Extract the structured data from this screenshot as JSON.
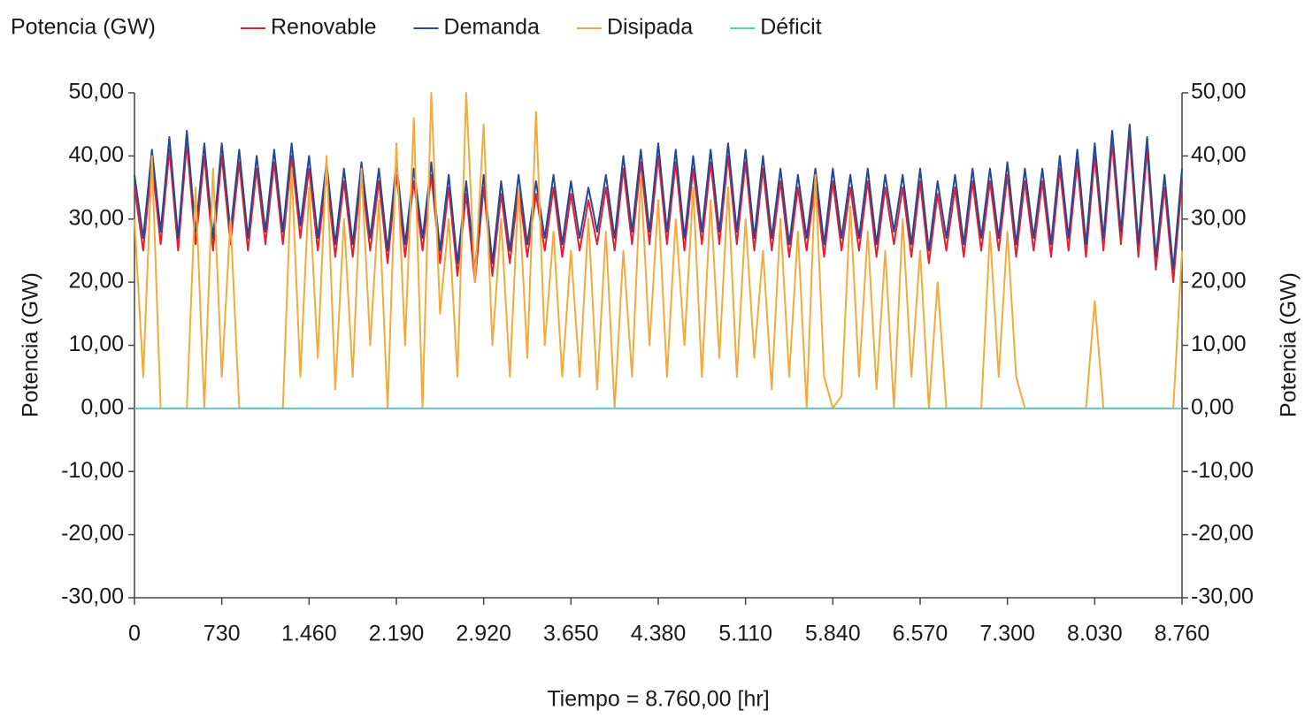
{
  "chart_data": {
    "type": "line",
    "legend_title": "Potencia (GW)",
    "y_label": "Potencia (GW)",
    "y2_label": "Potencia (GW)",
    "x_label": "Tiempo = 8.760,00 [hr]",
    "legend_position": "top-left",
    "grid": false,
    "x": [
      0,
      73,
      146,
      219,
      292,
      365,
      438,
      511,
      584,
      657,
      730,
      803,
      876,
      949,
      1022,
      1095,
      1168,
      1241,
      1314,
      1387,
      1460,
      1533,
      1606,
      1679,
      1752,
      1825,
      1898,
      1971,
      2044,
      2117,
      2190,
      2263,
      2336,
      2409,
      2482,
      2555,
      2628,
      2701,
      2774,
      2847,
      2920,
      2993,
      3066,
      3139,
      3212,
      3285,
      3358,
      3431,
      3504,
      3577,
      3650,
      3723,
      3796,
      3869,
      3942,
      4015,
      4088,
      4161,
      4234,
      4307,
      4380,
      4453,
      4526,
      4599,
      4672,
      4745,
      4818,
      4891,
      4964,
      5037,
      5110,
      5183,
      5256,
      5329,
      5402,
      5475,
      5548,
      5621,
      5694,
      5767,
      5840,
      5913,
      5986,
      6059,
      6132,
      6205,
      6278,
      6351,
      6424,
      6497,
      6570,
      6643,
      6716,
      6789,
      6862,
      6935,
      7008,
      7081,
      7154,
      7227,
      7300,
      7373,
      7446,
      7519,
      7592,
      7665,
      7738,
      7811,
      7884,
      7957,
      8030,
      8103,
      8176,
      8249,
      8322,
      8395,
      8468,
      8541,
      8614,
      8687,
      8760
    ],
    "series": [
      {
        "name": "Renovable",
        "color": "#e5202e",
        "values": [
          35,
          25,
          39,
          26,
          41,
          25,
          42,
          26,
          40,
          25,
          40,
          26,
          39,
          25,
          38,
          26,
          39,
          26,
          40,
          27,
          38,
          25,
          37,
          24,
          36,
          24,
          37,
          25,
          36,
          23,
          37,
          24,
          36,
          25,
          37,
          23,
          35,
          21,
          34,
          20,
          35,
          21,
          34,
          23,
          35,
          24,
          34,
          25,
          35,
          24,
          34,
          25,
          33,
          26,
          35,
          25,
          38,
          26,
          39,
          26,
          40,
          26,
          39,
          25,
          38,
          26,
          39,
          26,
          40,
          26,
          39,
          25,
          38,
          25,
          36,
          24,
          35,
          25,
          36,
          24,
          36,
          25,
          35,
          25,
          36,
          24,
          35,
          26,
          35,
          24,
          36,
          23,
          34,
          25,
          35,
          24,
          36,
          25,
          36,
          25,
          37,
          24,
          36,
          25,
          36,
          24,
          38,
          25,
          39,
          24,
          40,
          25,
          42,
          26,
          43,
          24,
          41,
          22,
          35,
          20,
          36
        ]
      },
      {
        "name": "Demanda",
        "color": "#22479b",
        "values": [
          37,
          27,
          41,
          28,
          43,
          27,
          44,
          28,
          42,
          27,
          42,
          28,
          41,
          27,
          40,
          28,
          41,
          28,
          42,
          29,
          40,
          27,
          39,
          26,
          38,
          26,
          39,
          27,
          38,
          25,
          39,
          26,
          38,
          27,
          39,
          25,
          37,
          23,
          36,
          22,
          37,
          23,
          36,
          25,
          37,
          26,
          36,
          27,
          37,
          26,
          36,
          27,
          35,
          28,
          37,
          27,
          40,
          28,
          41,
          28,
          42,
          28,
          41,
          27,
          40,
          28,
          41,
          28,
          42,
          28,
          41,
          27,
          40,
          27,
          38,
          26,
          37,
          27,
          38,
          26,
          38,
          27,
          37,
          27,
          38,
          26,
          37,
          28,
          37,
          26,
          38,
          25,
          36,
          27,
          37,
          26,
          38,
          27,
          38,
          27,
          39,
          26,
          38,
          27,
          38,
          26,
          40,
          27,
          41,
          26,
          42,
          27,
          44,
          28,
          45,
          26,
          43,
          24,
          37,
          22,
          38
        ]
      },
      {
        "name": "Disipada",
        "color": "#f4a93a",
        "values": [
          30,
          5,
          40,
          0,
          0,
          0,
          0,
          35,
          0,
          38,
          5,
          30,
          0,
          0,
          0,
          0,
          0,
          0,
          38,
          5,
          35,
          8,
          40,
          3,
          30,
          5,
          38,
          10,
          33,
          0,
          42,
          10,
          46,
          0,
          50,
          15,
          30,
          5,
          50,
          20,
          45,
          10,
          30,
          5,
          35,
          8,
          47,
          10,
          28,
          5,
          25,
          5,
          30,
          3,
          28,
          0,
          25,
          5,
          37,
          10,
          33,
          5,
          30,
          10,
          35,
          5,
          33,
          8,
          35,
          5,
          30,
          8,
          25,
          3,
          30,
          5,
          28,
          0,
          37,
          5,
          0,
          2,
          32,
          5,
          28,
          3,
          25,
          0,
          30,
          5,
          25,
          0,
          20,
          0,
          0,
          0,
          0,
          0,
          28,
          5,
          28,
          5,
          0,
          0,
          0,
          0,
          0,
          0,
          0,
          0,
          17,
          0,
          0,
          0,
          0,
          0,
          0,
          0,
          0,
          0,
          25
        ]
      },
      {
        "name": "Déficit",
        "color": "#5fc6c0",
        "values": [
          0,
          0,
          0,
          0,
          0,
          0,
          0,
          0,
          0,
          0,
          0,
          0,
          0,
          0,
          0,
          0,
          0,
          0,
          0,
          0,
          0,
          0,
          0,
          0,
          0,
          0,
          0,
          0,
          0,
          0,
          0,
          0,
          0,
          0,
          0,
          0,
          0,
          0,
          0,
          0,
          0,
          0,
          0,
          0,
          0,
          0,
          0,
          0,
          0,
          0,
          0,
          0,
          0,
          0,
          0,
          0,
          0,
          0,
          0,
          0,
          0,
          0,
          0,
          0,
          0,
          0,
          0,
          0,
          0,
          0,
          0,
          0,
          0,
          0,
          0,
          0,
          0,
          0,
          0,
          0,
          0,
          0,
          0,
          0,
          0,
          0,
          0,
          0,
          0,
          0,
          0,
          0,
          0,
          0,
          0,
          0,
          0,
          0,
          0,
          0,
          0,
          0,
          0,
          0,
          0,
          0,
          0,
          0,
          0,
          0,
          0,
          0,
          0,
          0,
          0,
          0,
          0,
          0,
          0,
          0,
          0
        ]
      }
    ],
    "xlim": [
      0,
      8760
    ],
    "xticks": [
      0,
      730,
      {
        "value": 1460,
        "label": "1.460"
      },
      {
        "value": 2190,
        "label": "2.190"
      },
      {
        "value": 2920,
        "label": "2.920"
      },
      {
        "value": 3650,
        "label": "3.650"
      },
      {
        "value": 4380,
        "label": "4.380"
      },
      {
        "value": 5110,
        "label": "5.110"
      },
      {
        "value": 5840,
        "label": "5.840"
      },
      {
        "value": 6570,
        "label": "6.570"
      },
      {
        "value": 7300,
        "label": "7.300"
      },
      {
        "value": 8030,
        "label": "8.030"
      },
      {
        "value": 8760,
        "label": "8.760"
      }
    ],
    "ylim": [
      -30,
      50
    ],
    "yticks": [
      {
        "value": -30,
        "label": "-30,00"
      },
      {
        "value": -20,
        "label": "-20,00"
      },
      {
        "value": -10,
        "label": "-10,00"
      },
      {
        "value": 0,
        "label": "0,00"
      },
      {
        "value": 10,
        "label": "10,00"
      },
      {
        "value": 20,
        "label": "20,00"
      },
      {
        "value": 30,
        "label": "30,00"
      },
      {
        "value": 40,
        "label": "40,00"
      },
      {
        "value": 50,
        "label": "50,00"
      }
    ],
    "y2lim": [
      -30,
      50
    ],
    "y2ticks": [
      {
        "value": -30,
        "label": "-30,00"
      },
      {
        "value": -20,
        "label": "-20,00"
      },
      {
        "value": -10,
        "label": "-10,00"
      },
      {
        "value": 0,
        "label": "0,00"
      },
      {
        "value": 10,
        "label": "10,00"
      },
      {
        "value": 20,
        "label": "20,00"
      },
      {
        "value": 30,
        "label": "30,00"
      },
      {
        "value": 40,
        "label": "40,00"
      },
      {
        "value": 50,
        "label": "50,00"
      }
    ]
  }
}
